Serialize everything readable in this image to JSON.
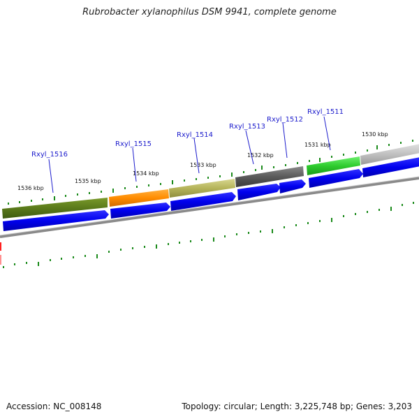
{
  "title": "Rubrobacter xylanophilus DSM 9941, complete genome",
  "footer": {
    "accession": "Accession: NC_008148",
    "summary": "Topology: circular; Length: 3,225,748 bp; Genes: 3,203"
  },
  "genes": [
    {
      "id": "Rxyl_1516",
      "color": "#5a7a1a"
    },
    {
      "id": "Rxyl_1515",
      "color": "#ff8c00"
    },
    {
      "id": "Rxyl_1514",
      "color": "#b5b45a"
    },
    {
      "id": "Rxyl_1513",
      "color": "#5a5a5a"
    },
    {
      "id": "Rxyl_1512",
      "color": "#5a5a5a"
    },
    {
      "id": "Rxyl_1511",
      "color": "#2ecc2e"
    }
  ],
  "kbp_ticks": [
    "1536 kbp",
    "1535 kbp",
    "1534 kbp",
    "1533 kbp",
    "1532 kbp",
    "1531 kbp",
    "1530 kbp"
  ],
  "colors": {
    "strand_arrows": "#0000ee",
    "backbone": "#888888",
    "tick": "#1a8a1a",
    "label": "#1a1acc",
    "partial_left": "#ff2020"
  }
}
